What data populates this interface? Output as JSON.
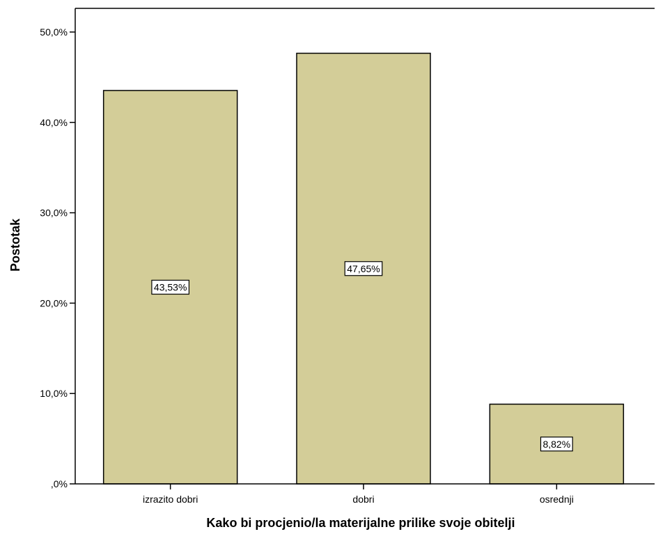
{
  "chart_data": {
    "type": "bar",
    "title": "",
    "xlabel": "Kako bi procjenio/la materijalne prilike svoje obitelji",
    "ylabel": "Postotak",
    "categories": [
      "izrazito dobri",
      "dobri",
      "osrednji"
    ],
    "values": [
      43.53,
      47.65,
      8.82
    ],
    "data_labels": [
      "43,53%",
      "47,65%",
      "8,82%"
    ],
    "ylim": [
      0,
      50
    ],
    "y_ticks": [
      0,
      10,
      20,
      30,
      40,
      50
    ],
    "y_tick_labels": [
      ",0%",
      "10,0%",
      "20,0%",
      "30,0%",
      "40,0%",
      "50,0%"
    ],
    "grid": false,
    "legend": "none",
    "colors": {
      "bar_fill": "#d3cd98",
      "bar_stroke": "#000000",
      "axis": "#000000",
      "background": "#ffffff"
    }
  }
}
